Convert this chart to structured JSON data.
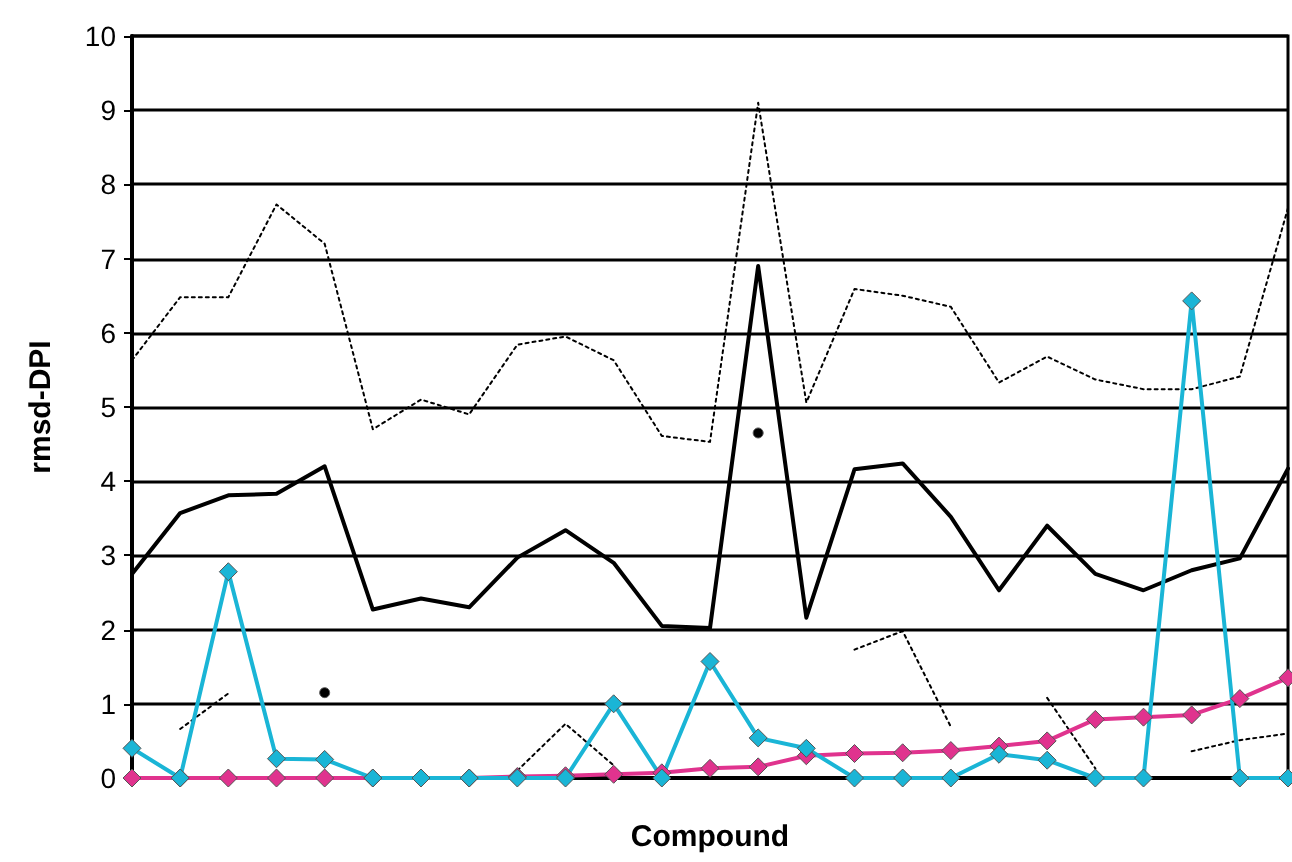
{
  "chart_data": {
    "type": "line",
    "xlabel": "Compound",
    "ylabel": "rmsd-DPI",
    "categories": [
      null,
      null,
      null,
      null,
      null,
      null,
      null,
      null,
      null,
      null,
      null,
      null,
      null,
      null,
      null,
      null,
      null,
      null,
      null,
      null,
      null,
      null,
      null,
      null,
      null
    ],
    "series": [
      {
        "color": "#000000",
        "line_style": "dotted",
        "marker": "none",
        "values": [
          5.63,
          6.48,
          6.48,
          7.73,
          7.2,
          4.7,
          5.1,
          4.9,
          5.84,
          5.95,
          5.63,
          4.61,
          4.53,
          9.1,
          5.06,
          6.59,
          6.5,
          6.35,
          5.33,
          5.68,
          5.37,
          5.24,
          5.24,
          5.41,
          7.68
        ]
      },
      {
        "color": "#000000",
        "line_style": "dotted",
        "marker": "none",
        "values": [
          null,
          0.66,
          1.14,
          null,
          1.15,
          null,
          null,
          null,
          0.1,
          0.73,
          0.17,
          null,
          null,
          4.65,
          null,
          1.73,
          1.98,
          0.69,
          null,
          1.08,
          0.13,
          null,
          0.36,
          0.51,
          0.6
        ]
      },
      {
        "color": "#000000",
        "line_style": "solid",
        "marker": "none",
        "values": [
          2.75,
          3.57,
          3.81,
          3.83,
          4.2,
          2.27,
          2.42,
          2.3,
          2.97,
          3.34,
          2.9,
          2.05,
          2.02,
          6.9,
          2.16,
          4.16,
          4.24,
          3.52,
          2.53,
          3.4,
          2.75,
          2.53,
          2.8,
          2.96,
          4.17
        ]
      },
      {
        "color": "#e0338e",
        "line_style": "solid",
        "marker": "diamond",
        "values": [
          0,
          0,
          0,
          0,
          0,
          0,
          0,
          0,
          0.02,
          0.03,
          0.05,
          0.07,
          0.13,
          0.15,
          0.3,
          0.33,
          0.34,
          0.37,
          0.43,
          0.5,
          0.79,
          0.82,
          0.85,
          1.07,
          1.35
        ]
      },
      {
        "color": "#1ab5d6",
        "line_style": "solid",
        "marker": "diamond",
        "values": [
          0.4,
          0,
          2.78,
          0.26,
          0.25,
          0,
          0,
          0,
          0,
          0,
          1.0,
          0,
          1.57,
          0.54,
          0.4,
          0,
          0,
          0,
          0.32,
          0.24,
          0,
          0,
          6.43,
          0,
          0
        ]
      }
    ],
    "ylim": [
      0,
      10
    ],
    "yticks": [
      0,
      1,
      2,
      3,
      4,
      5,
      6,
      7,
      8,
      9,
      10
    ],
    "grid": "y",
    "tick_labels": "y"
  }
}
